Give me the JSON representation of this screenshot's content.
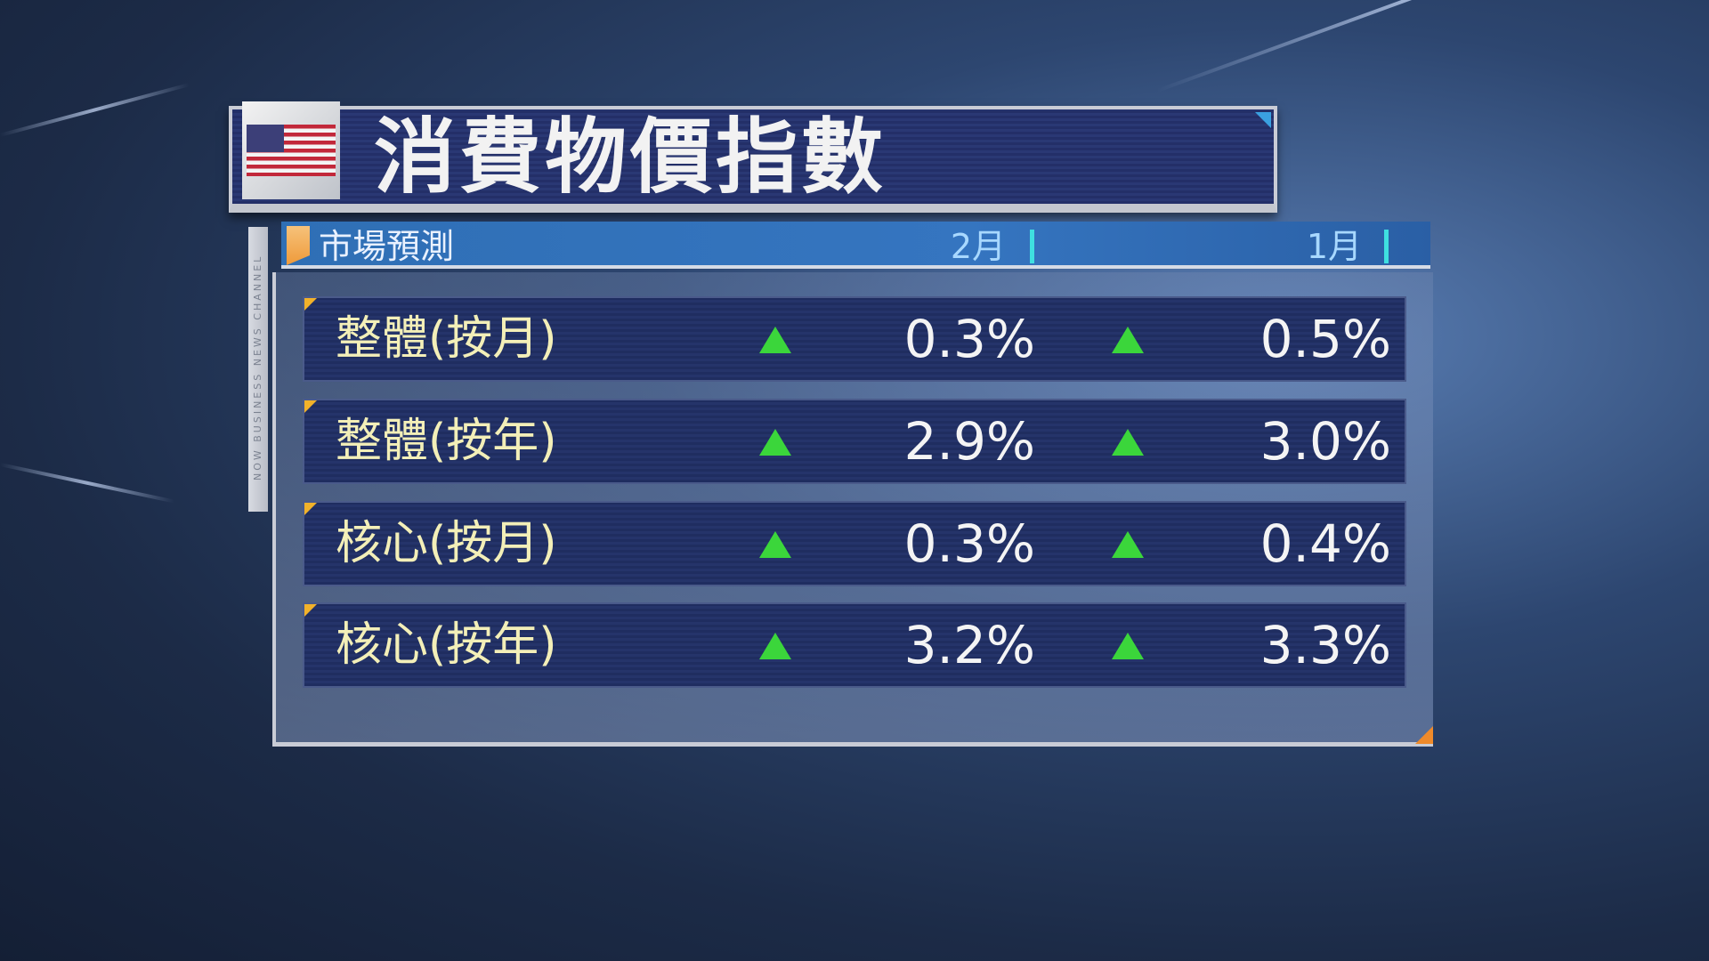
{
  "title": "消費物價指數",
  "flag": "us-flag",
  "channel_watermark": "NOW BUSINESS NEWS CHANNEL",
  "header": {
    "label": "市場預測",
    "columns": [
      "2月",
      "1月"
    ]
  },
  "rows": [
    {
      "label": "整體(按月)",
      "feb": "0.3%",
      "jan": "0.5%",
      "feb_trend": "up",
      "jan_trend": "up"
    },
    {
      "label": "整體(按年)",
      "feb": "2.9%",
      "jan": "3.0%",
      "feb_trend": "up",
      "jan_trend": "up"
    },
    {
      "label": "核心(按月)",
      "feb": "0.3%",
      "jan": "0.4%",
      "feb_trend": "up",
      "jan_trend": "up"
    },
    {
      "label": "核心(按年)",
      "feb": "3.2%",
      "jan": "3.3%",
      "feb_trend": "up",
      "jan_trend": "up"
    }
  ],
  "colors": {
    "up_arrow": "#3bd63b",
    "label": "#f3efb8",
    "accent": "#ef9a3a"
  }
}
